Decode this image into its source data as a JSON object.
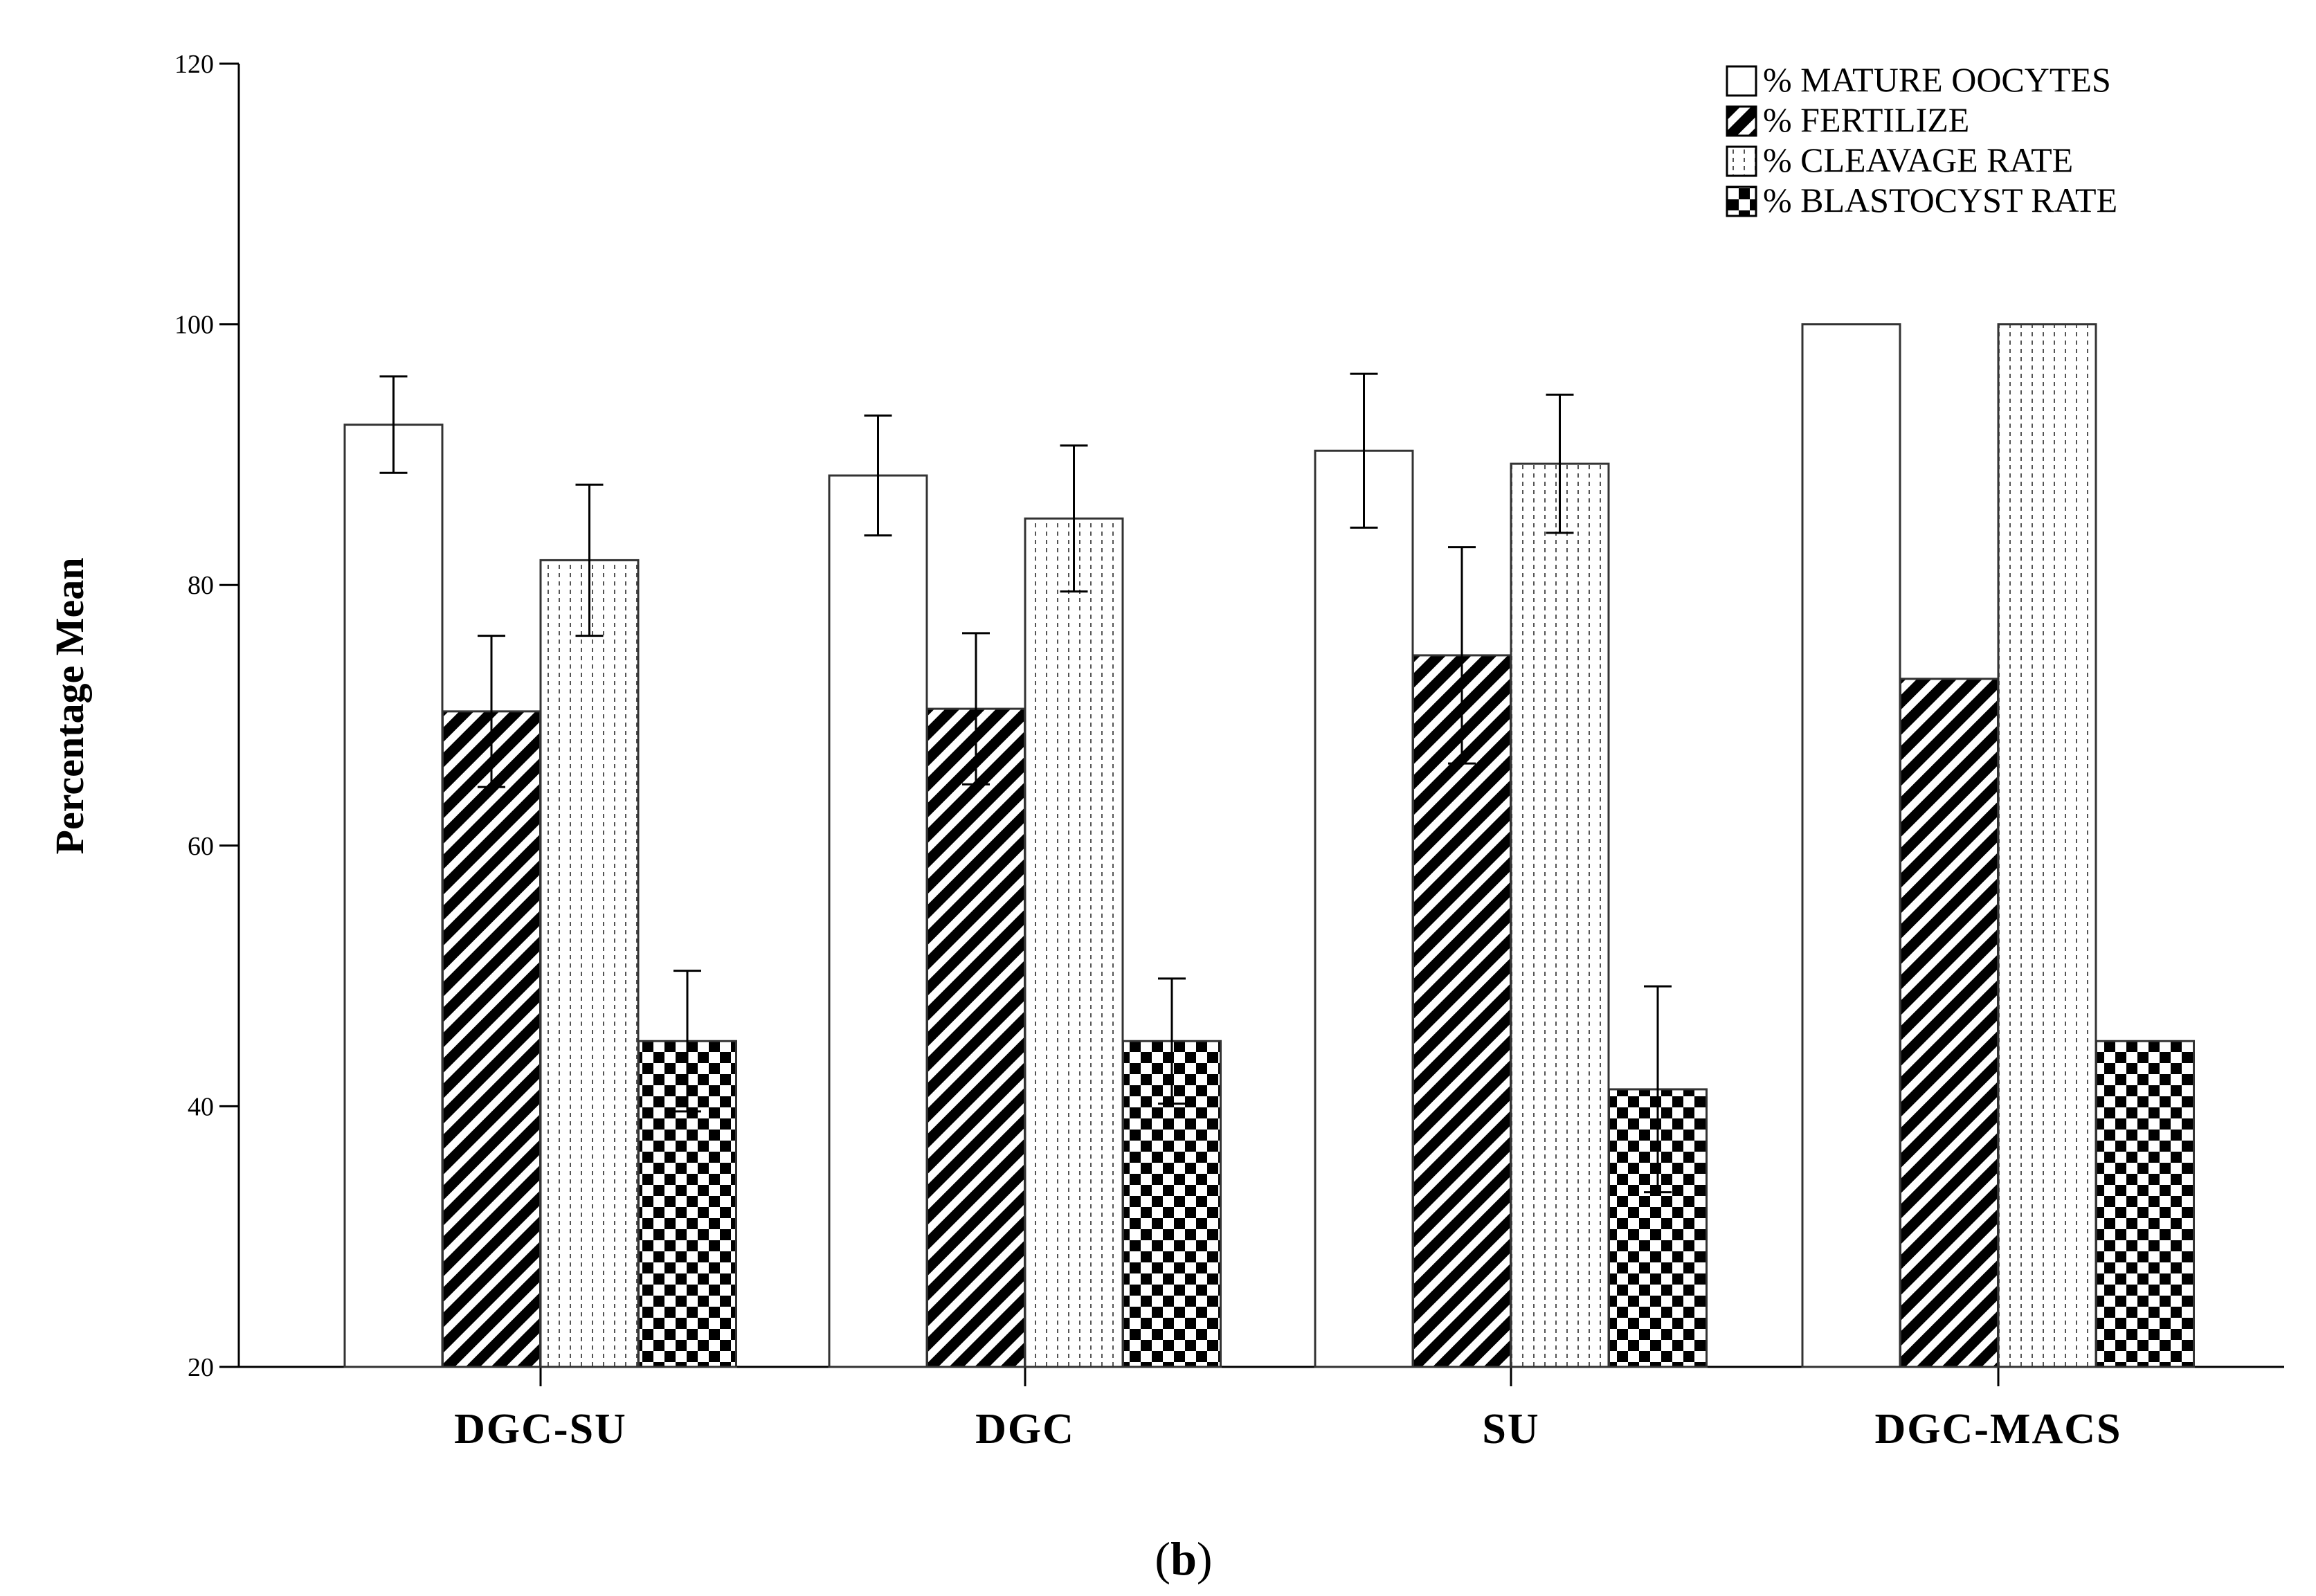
{
  "chart_data": {
    "type": "bar",
    "title": "",
    "xlabel": "",
    "ylabel": "Percentage Mean",
    "ylim": [
      20,
      120
    ],
    "yticks": [
      20,
      40,
      60,
      80,
      100,
      120
    ],
    "categories": [
      "DGC-SU",
      "DGC",
      "SU",
      "DGC-MACS"
    ],
    "series": [
      {
        "name": "% MATURE OOCYTES",
        "pattern": "blank",
        "values": [
          92.3,
          88.4,
          90.3,
          100
        ],
        "errors": [
          3.7,
          4.6,
          5.9,
          0
        ]
      },
      {
        "name": " % FERTILIZE",
        "pattern": "diagonal",
        "values": [
          70.3,
          70.5,
          74.6,
          72.8
        ],
        "errors": [
          5.8,
          5.8,
          8.3,
          0
        ]
      },
      {
        "name": "% CLEAVAGE RATE",
        "pattern": "dotted",
        "values": [
          81.9,
          85.1,
          89.3,
          100
        ],
        "errors": [
          5.8,
          5.6,
          5.3,
          0
        ]
      },
      {
        "name": "% BLASTOCYST RATE",
        "pattern": "checker",
        "values": [
          45.0,
          45.0,
          41.3,
          45.0
        ],
        "errors": [
          5.4,
          4.8,
          7.9,
          0
        ]
      }
    ],
    "legend_position": "top-right",
    "grid": false
  },
  "caption": {
    "open": "(",
    "letter": "b",
    "close": ")"
  },
  "colors": {
    "stroke": "#000000",
    "fill": "#ffffff"
  }
}
